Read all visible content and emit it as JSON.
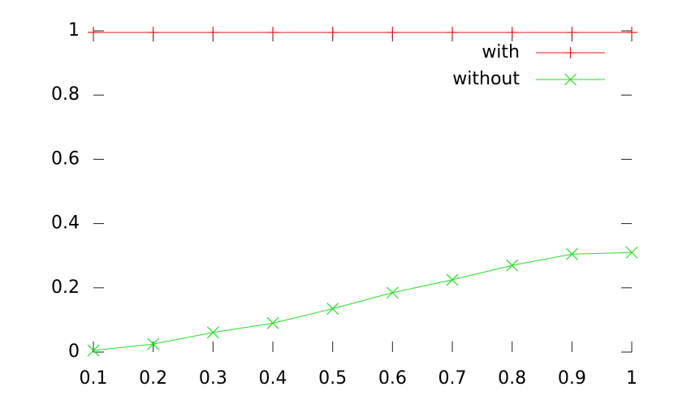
{
  "chart_data": {
    "type": "line",
    "x": [
      0.1,
      0.2,
      0.3,
      0.4,
      0.5,
      0.6,
      0.7,
      0.8,
      0.9,
      1
    ],
    "series": [
      {
        "name": "with",
        "color": "#e0191b",
        "marker": "plus",
        "values": [
          0.995,
          0.995,
          0.995,
          0.995,
          0.995,
          0.995,
          0.995,
          0.995,
          0.995,
          0.995
        ]
      },
      {
        "name": "without",
        "color": "#22e022",
        "marker": "cross",
        "values": [
          0.005,
          0.025,
          0.061,
          0.09,
          0.135,
          0.185,
          0.225,
          0.27,
          0.305,
          0.31
        ]
      }
    ],
    "xlim": [
      0.1,
      1
    ],
    "xticks": [
      0.1,
      0.2,
      0.3,
      0.4,
      0.5,
      0.6,
      0.7,
      0.8,
      0.9,
      1
    ],
    "ylim": [
      0,
      1
    ],
    "yticks": [
      0,
      0.2,
      0.4,
      0.6,
      0.8,
      1
    ],
    "legend": "top right"
  }
}
